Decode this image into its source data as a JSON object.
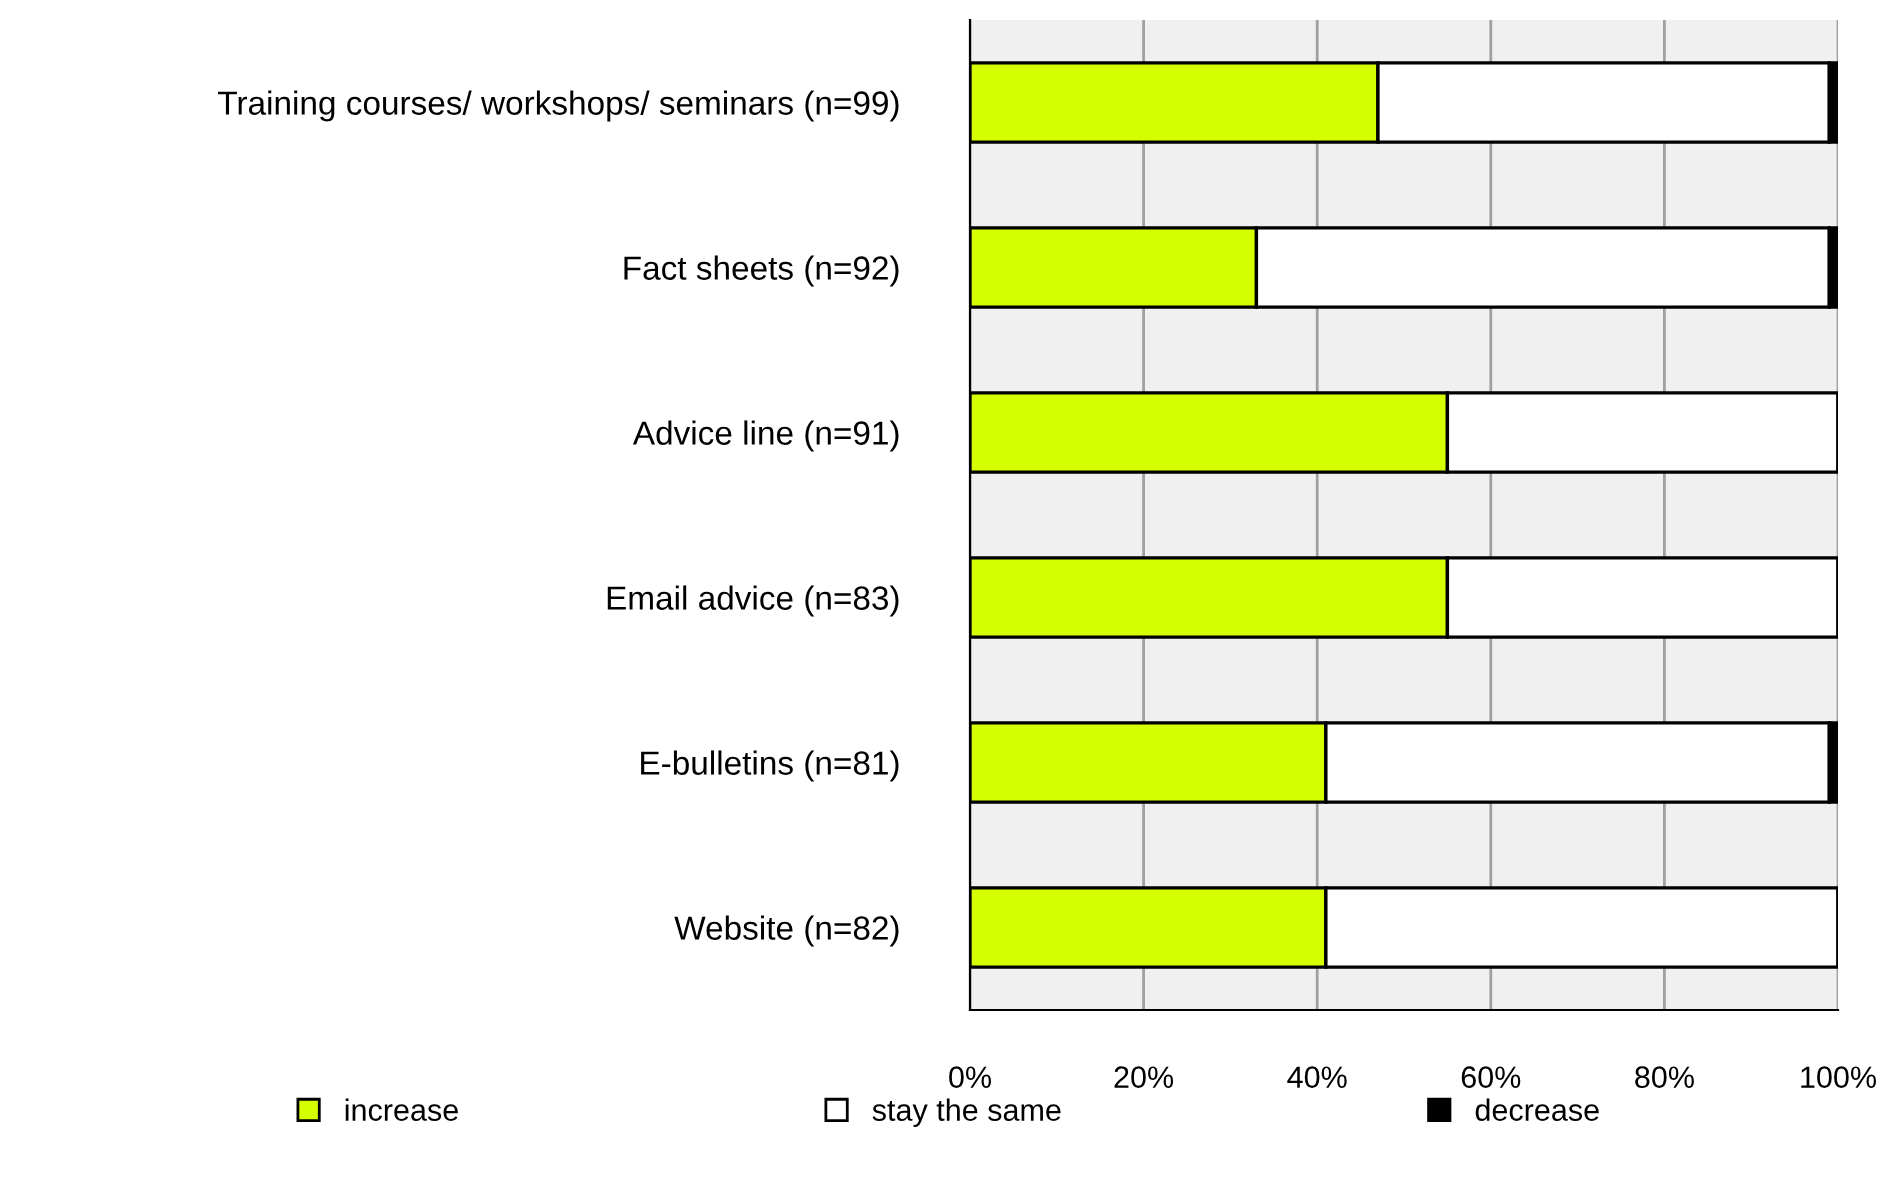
{
  "chart_data": {
    "type": "bar",
    "orientation": "horizontal",
    "stacked": true,
    "categories": [
      "Training courses/ workshops/ seminars (n=99)",
      "Fact sheets (n=92)",
      "Advice line (n=91)",
      "Email advice (n=83)",
      "E-bulletins (n=81)",
      "Website (n=82)"
    ],
    "series": [
      {
        "name": "increase",
        "color": "#d4ff00",
        "values": [
          47,
          33,
          55,
          55,
          41,
          41
        ]
      },
      {
        "name": "stay the same",
        "color": "#ffffff",
        "values": [
          52,
          66,
          45,
          45,
          58,
          59
        ]
      },
      {
        "name": "decrease",
        "color": "#000000",
        "values": [
          1,
          1,
          0,
          0,
          1,
          0
        ]
      }
    ],
    "xlim": [
      0,
      100
    ],
    "xticks": [
      {
        "value": 0,
        "label": "0%"
      },
      {
        "value": 20,
        "label": "20%"
      },
      {
        "value": 40,
        "label": "40%"
      },
      {
        "value": 60,
        "label": "60%"
      },
      {
        "value": 80,
        "label": "80%"
      },
      {
        "value": 100,
        "label": "100%"
      }
    ],
    "grid": "x",
    "legend": "bottom"
  }
}
